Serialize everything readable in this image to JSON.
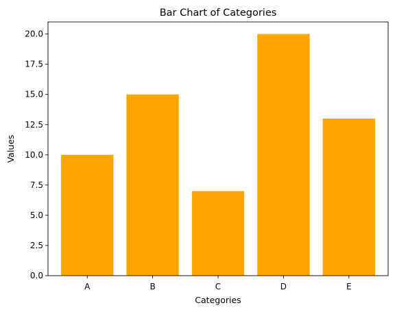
{
  "chart_data": {
    "type": "bar",
    "title": "Bar Chart of Categories",
    "xlabel": "Categories",
    "ylabel": "Values",
    "categories": [
      "A",
      "B",
      "C",
      "D",
      "E"
    ],
    "values": [
      10,
      15,
      7,
      20,
      13
    ],
    "ylim": [
      0,
      21
    ],
    "yticks": [
      "0.0",
      "2.5",
      "5.0",
      "7.5",
      "10.0",
      "12.5",
      "15.0",
      "17.5",
      "20.0"
    ],
    "bar_color": "#ffa500",
    "grid": false,
    "legend": "none"
  }
}
